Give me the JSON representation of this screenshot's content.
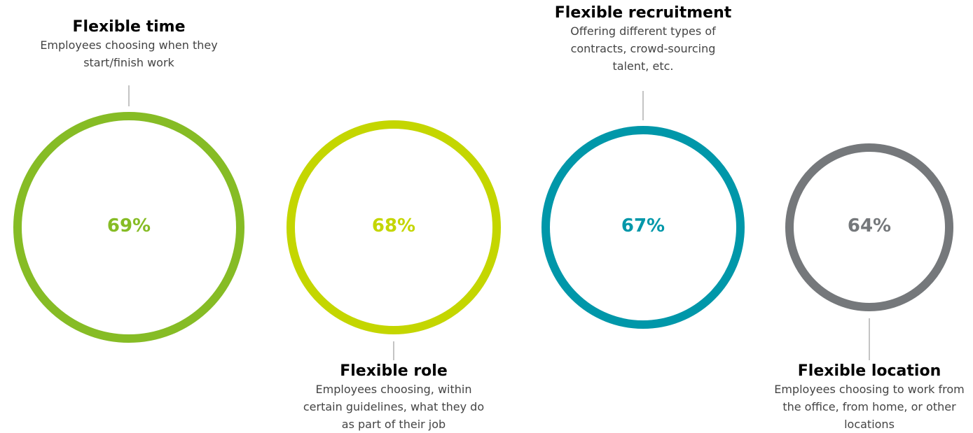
{
  "chart_data": {
    "type": "circles",
    "items": [
      {
        "title": "Flexible time",
        "description": "Employees choosing when they start/finish work",
        "value": 69,
        "value_label": "69%",
        "color": "#86bc25",
        "label_position": "top"
      },
      {
        "title": "Flexible role",
        "description": "Employees choosing, within certain guidelines, what they do as part of their job",
        "value": 68,
        "value_label": "68%",
        "color": "#c4d600",
        "label_position": "bottom"
      },
      {
        "title": "Flexible recruitment",
        "description": "Offering different types of contracts, crowd-sourcing talent, etc.",
        "value": 67,
        "value_label": "67%",
        "color": "#0097a9",
        "label_position": "top"
      },
      {
        "title": "Flexible location",
        "description": "Employees choosing to work from the office, from home, or other locations",
        "value": 64,
        "value_label": "64%",
        "color": "#75787b",
        "label_position": "bottom"
      }
    ]
  }
}
